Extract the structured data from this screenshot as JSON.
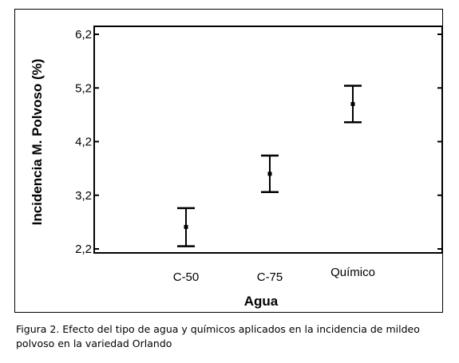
{
  "chart_data": {
    "type": "scatter",
    "title": "",
    "xlabel": "Agua",
    "ylabel": "Incidencia M. Polvoso (%)",
    "categories": [
      "C-50",
      "C-75",
      "Químico"
    ],
    "means": [
      2.61,
      3.6,
      4.9
    ],
    "lower": [
      2.25,
      3.26,
      4.56
    ],
    "upper": [
      2.96,
      3.94,
      5.24
    ],
    "ylim": [
      2.2,
      6.2
    ],
    "yticks": [
      2.2,
      3.2,
      4.2,
      5.2,
      6.2
    ],
    "ytick_labels": [
      "2,2",
      "3,2",
      "4,2",
      "5,2",
      "6,2"
    ],
    "grid": false
  },
  "caption": "Figura 2. Efecto del tipo de agua y químicos aplicados en la incidencia de mildeo polvoso en la variedad Orlando"
}
